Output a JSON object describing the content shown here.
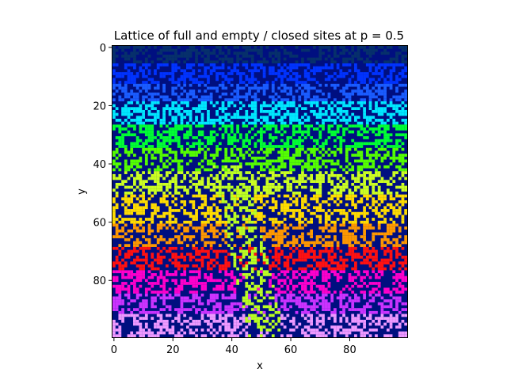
{
  "chart_data": {
    "type": "heatmap",
    "title": "Lattice of full and empty / closed sites at p = 0.5",
    "xlabel": "x",
    "ylabel": "y",
    "grid_size": [
      100,
      100
    ],
    "xlim": [
      0,
      99
    ],
    "ylim": [
      0,
      99
    ],
    "y_axis_inverted": true,
    "x_ticks": [
      0,
      20,
      40,
      60,
      80
    ],
    "y_ticks": [
      0,
      20,
      40,
      60,
      80
    ],
    "grid": false,
    "site_probability": 0.5,
    "empty_color": "#000f80",
    "cluster_colors": [
      {
        "rows": [
          0,
          5
        ],
        "color": "#06306b"
      },
      {
        "rows": [
          6,
          12
        ],
        "color": "#0033ff"
      },
      {
        "rows": [
          13,
          18
        ],
        "color": "#1a5cff"
      },
      {
        "rows": [
          19,
          26
        ],
        "color": "#00e8ff"
      },
      {
        "rows": [
          27,
          34
        ],
        "color": "#00ff33"
      },
      {
        "rows": [
          35,
          42
        ],
        "color": "#55ff00"
      },
      {
        "rows": [
          43,
          50
        ],
        "color": "#ccff22"
      },
      {
        "rows": [
          51,
          60
        ],
        "color": "#ffdd00"
      },
      {
        "rows": [
          61,
          68
        ],
        "color": "#ff9900"
      },
      {
        "rows": [
          69,
          76
        ],
        "color": "#ff1111"
      },
      {
        "rows": [
          77,
          84
        ],
        "color": "#ff00cc"
      },
      {
        "rows": [
          85,
          91
        ],
        "color": "#cc33ff"
      },
      {
        "rows": [
          92,
          99
        ],
        "color": "#ee99ff"
      }
    ],
    "spanning_cluster_color": "#bbff22"
  }
}
